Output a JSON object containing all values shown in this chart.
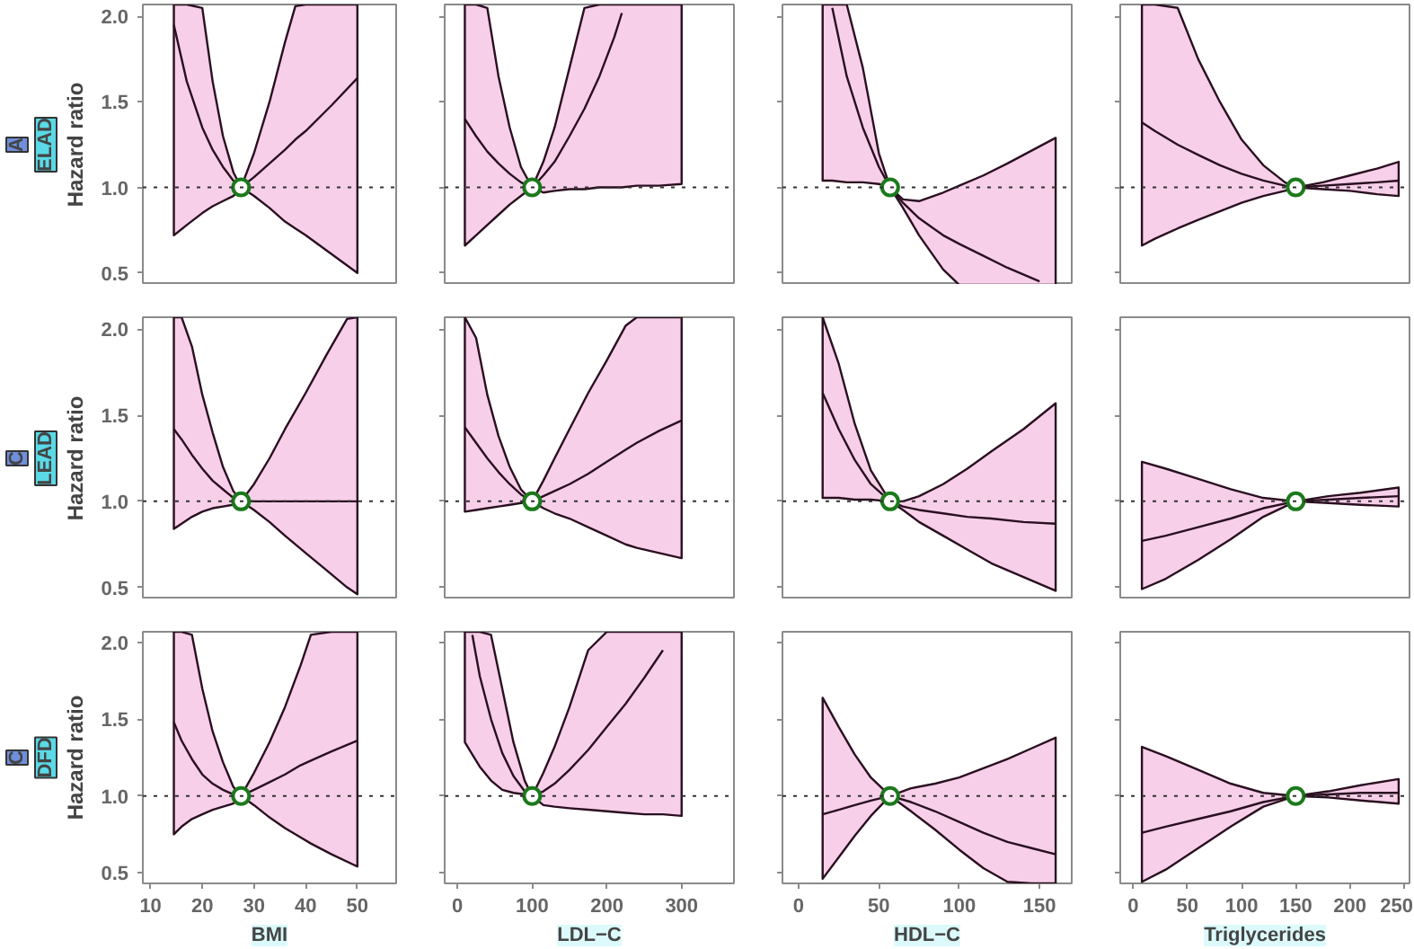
{
  "chart_data": [
    {
      "type": "line",
      "annotations": [
        "A",
        "ELAD"
      ],
      "ylabel": "Hazard ratio",
      "tick_labels": "y",
      "grid": false,
      "xlim": [
        8.5,
        57.5
      ],
      "xticks": [
        10,
        20,
        30,
        40,
        50
      ],
      "ylim": [
        0.43,
        2.07
      ],
      "yticks": [
        {
          "value": 0.5,
          "label": "0.5"
        },
        {
          "value": 1,
          "label": "1.0"
        },
        {
          "value": 1.5,
          "label": "1.5"
        },
        {
          "value": 2,
          "label": "2.0"
        }
      ],
      "ref_lines": [
        {
          "axis": "y",
          "value": 1,
          "line_style": "dotted",
          "color": "#333333"
        }
      ],
      "x": [
        14.5,
        17,
        20,
        22,
        24,
        26,
        27.5,
        30,
        33,
        36,
        38,
        40,
        45,
        50
      ],
      "series": [
        {
          "color": "#2a0f20",
          "values": [
            1.95,
            1.62,
            1.35,
            1.22,
            1.12,
            1.04,
            1.0,
            1.06,
            1.14,
            1.22,
            1.28,
            1.33,
            1.48,
            1.64
          ],
          "upper": [
            2.07,
            2.07,
            2.05,
            1.62,
            1.3,
            1.09,
            1.0,
            1.2,
            1.5,
            1.85,
            2.06,
            2.07,
            2.07,
            2.07
          ],
          "lower": [
            0.72,
            0.78,
            0.85,
            0.89,
            0.92,
            0.95,
            1.0,
            0.95,
            0.88,
            0.8,
            0.76,
            0.72,
            0.61,
            0.5
          ]
        },
        {
          "type": "scatter",
          "x": [
            27.5
          ],
          "values": [
            1
          ],
          "color": "#1b7a1b",
          "marker": "circle"
        }
      ]
    },
    {
      "type": "line",
      "tick_labels": false,
      "grid": false,
      "xlim": [
        -17,
        370
      ],
      "xticks": [
        0,
        100,
        200,
        300
      ],
      "ylim": [
        0.43,
        2.07
      ],
      "yticks": [
        {
          "value": 0.5,
          "label": null
        },
        {
          "value": 1,
          "label": null
        },
        {
          "value": 1.5,
          "label": null
        },
        {
          "value": 2,
          "label": null
        }
      ],
      "ref_lines": [
        {
          "axis": "y",
          "value": 1,
          "line_style": "dotted",
          "color": "#333333"
        }
      ],
      "x": [
        10,
        25,
        40,
        55,
        70,
        85,
        100,
        115,
        130,
        150,
        170,
        190,
        210,
        220,
        240,
        270,
        300
      ],
      "series": [
        {
          "color": "#2a0f20",
          "values": [
            1.4,
            1.3,
            1.21,
            1.14,
            1.08,
            1.03,
            1.0,
            1.07,
            1.15,
            1.3,
            1.46,
            1.65,
            1.88,
            2.02,
            null,
            null,
            null
          ],
          "upper": [
            2.07,
            2.07,
            2.05,
            1.65,
            1.35,
            1.12,
            1.0,
            1.15,
            1.35,
            1.7,
            2.05,
            2.07,
            2.07,
            2.07,
            2.07,
            2.07,
            2.07
          ],
          "lower": [
            0.66,
            0.72,
            0.78,
            0.84,
            0.9,
            0.95,
            1.0,
            0.97,
            0.98,
            0.99,
            0.99,
            1.0,
            1.0,
            1.0,
            1.01,
            1.01,
            1.02
          ]
        },
        {
          "type": "scatter",
          "x": [
            100
          ],
          "values": [
            1
          ],
          "color": "#1b7a1b",
          "marker": "circle"
        }
      ]
    },
    {
      "type": "line",
      "tick_labels": false,
      "grid": false,
      "xlim": [
        -10,
        170
      ],
      "xticks": [
        0,
        50,
        100,
        150
      ],
      "ylim": [
        0.43,
        2.07
      ],
      "yticks": [
        {
          "value": 0.5,
          "label": null
        },
        {
          "value": 1,
          "label": null
        },
        {
          "value": 1.5,
          "label": null
        },
        {
          "value": 2,
          "label": null
        }
      ],
      "ref_lines": [
        {
          "axis": "y",
          "value": 1,
          "line_style": "dotted",
          "color": "#333333"
        }
      ],
      "x": [
        15,
        21,
        30,
        40,
        50,
        57,
        65,
        75,
        90,
        100,
        115,
        130,
        150,
        160
      ],
      "series": [
        {
          "color": "#2a0f20",
          "values": [
            null,
            2.05,
            1.65,
            1.35,
            1.12,
            1.0,
            0.91,
            0.82,
            0.72,
            0.67,
            0.6,
            0.53,
            0.45,
            null
          ],
          "upper": [
            2.07,
            2.07,
            2.07,
            1.7,
            1.2,
            1.0,
            0.93,
            0.92,
            0.97,
            1.01,
            1.07,
            1.14,
            1.24,
            1.29
          ],
          "lower": [
            1.04,
            1.04,
            1.03,
            1.03,
            1.02,
            1.0,
            0.88,
            0.72,
            0.52,
            0.43,
            0.43,
            0.43,
            0.43,
            0.43
          ]
        },
        {
          "type": "scatter",
          "x": [
            57
          ],
          "values": [
            1
          ],
          "color": "#1b7a1b",
          "marker": "circle"
        }
      ]
    },
    {
      "type": "line",
      "tick_labels": false,
      "grid": false,
      "xlim": [
        -12,
        255
      ],
      "xticks": [
        0,
        50,
        100,
        150,
        200,
        250
      ],
      "ylim": [
        0.43,
        2.07
      ],
      "yticks": [
        {
          "value": 0.5,
          "label": null
        },
        {
          "value": 1,
          "label": null
        },
        {
          "value": 1.5,
          "label": null
        },
        {
          "value": 2,
          "label": null
        }
      ],
      "ref_lines": [
        {
          "axis": "y",
          "value": 1,
          "line_style": "dotted",
          "color": "#333333"
        }
      ],
      "x": [
        8,
        20,
        41,
        60,
        80,
        100,
        120,
        140,
        150,
        175,
        200,
        225,
        245
      ],
      "series": [
        {
          "color": "#2a0f20",
          "values": [
            1.38,
            1.33,
            1.25,
            1.19,
            1.13,
            1.08,
            1.04,
            1.01,
            1.0,
            1.01,
            1.02,
            1.03,
            1.04
          ],
          "upper": [
            2.07,
            2.07,
            2.05,
            1.75,
            1.5,
            1.28,
            1.13,
            1.03,
            1.0,
            1.03,
            1.07,
            1.11,
            1.15
          ],
          "lower": [
            0.66,
            0.7,
            0.76,
            0.81,
            0.86,
            0.91,
            0.95,
            0.98,
            1.0,
            0.99,
            0.98,
            0.96,
            0.95
          ]
        },
        {
          "type": "scatter",
          "x": [
            150
          ],
          "values": [
            1
          ],
          "color": "#1b7a1b",
          "marker": "circle"
        }
      ]
    },
    {
      "type": "line",
      "annotations": [
        "C",
        "LEAD"
      ],
      "ylabel": "Hazard ratio",
      "tick_labels": "y",
      "grid": false,
      "xlim": [
        8.5,
        57.5
      ],
      "xticks": [
        10,
        20,
        30,
        40,
        50
      ],
      "ylim": [
        0.43,
        2.07
      ],
      "yticks": [
        {
          "value": 0.5,
          "label": "0.5"
        },
        {
          "value": 1,
          "label": "1.0"
        },
        {
          "value": 1.5,
          "label": "1.5"
        },
        {
          "value": 2,
          "label": "2.0"
        }
      ],
      "ref_lines": [
        {
          "axis": "y",
          "value": 1,
          "line_style": "dotted",
          "color": "#333333"
        }
      ],
      "x": [
        14.5,
        16,
        18,
        20,
        22,
        24,
        26,
        27.5,
        30,
        33,
        36,
        40,
        44,
        48,
        50
      ],
      "series": [
        {
          "color": "#2a0f20",
          "values": [
            1.42,
            1.36,
            1.27,
            1.19,
            1.12,
            1.07,
            1.02,
            1.0,
            1.0,
            1.0,
            1.0,
            1.0,
            1.0,
            1.0,
            1.0
          ],
          "upper": [
            2.07,
            2.07,
            1.9,
            1.62,
            1.4,
            1.2,
            1.06,
            1.0,
            1.1,
            1.25,
            1.42,
            1.63,
            1.85,
            2.06,
            2.07
          ],
          "lower": [
            0.84,
            0.87,
            0.91,
            0.94,
            0.96,
            0.97,
            0.98,
            1.0,
            0.95,
            0.88,
            0.8,
            0.7,
            0.6,
            0.5,
            0.46
          ]
        },
        {
          "type": "scatter",
          "x": [
            27.5
          ],
          "values": [
            1
          ],
          "color": "#1b7a1b",
          "marker": "circle"
        }
      ]
    },
    {
      "type": "line",
      "tick_labels": false,
      "grid": false,
      "xlim": [
        -17,
        370
      ],
      "xticks": [
        0,
        100,
        200,
        300
      ],
      "ylim": [
        0.43,
        2.07
      ],
      "yticks": [
        {
          "value": 0.5,
          "label": null
        },
        {
          "value": 1,
          "label": null
        },
        {
          "value": 1.5,
          "label": null
        },
        {
          "value": 2,
          "label": null
        }
      ],
      "ref_lines": [
        {
          "axis": "y",
          "value": 1,
          "line_style": "dotted",
          "color": "#333333"
        }
      ],
      "x": [
        10,
        25,
        40,
        55,
        70,
        85,
        100,
        115,
        130,
        150,
        175,
        200,
        225,
        240,
        270,
        300
      ],
      "series": [
        {
          "color": "#2a0f20",
          "values": [
            1.43,
            1.34,
            1.25,
            1.17,
            1.1,
            1.04,
            1.0,
            1.03,
            1.06,
            1.1,
            1.16,
            1.23,
            1.3,
            1.34,
            1.41,
            1.47
          ],
          "upper": [
            2.07,
            1.95,
            1.62,
            1.38,
            1.2,
            1.07,
            1.0,
            1.12,
            1.25,
            1.42,
            1.63,
            1.82,
            2.02,
            2.07,
            2.07,
            2.07
          ],
          "lower": [
            0.94,
            0.95,
            0.96,
            0.97,
            0.98,
            0.99,
            1.0,
            0.96,
            0.93,
            0.9,
            0.85,
            0.8,
            0.75,
            0.73,
            0.7,
            0.67
          ]
        },
        {
          "type": "scatter",
          "x": [
            100
          ],
          "values": [
            1
          ],
          "color": "#1b7a1b",
          "marker": "circle"
        }
      ]
    },
    {
      "type": "line",
      "tick_labels": false,
      "grid": false,
      "xlim": [
        -10,
        170
      ],
      "xticks": [
        0,
        50,
        100,
        150
      ],
      "ylim": [
        0.43,
        2.07
      ],
      "yticks": [
        {
          "value": 0.5,
          "label": null
        },
        {
          "value": 1,
          "label": null
        },
        {
          "value": 1.5,
          "label": null
        },
        {
          "value": 2,
          "label": null
        }
      ],
      "ref_lines": [
        {
          "axis": "y",
          "value": 1,
          "line_style": "dotted",
          "color": "#333333"
        }
      ],
      "x": [
        15,
        25,
        35,
        45,
        57,
        65,
        75,
        90,
        105,
        120,
        140,
        160
      ],
      "series": [
        {
          "color": "#2a0f20",
          "values": [
            1.63,
            1.42,
            1.24,
            1.1,
            1.0,
            0.97,
            0.95,
            0.93,
            0.91,
            0.9,
            0.88,
            0.87
          ],
          "upper": [
            2.07,
            1.8,
            1.45,
            1.18,
            1.0,
            1.0,
            1.03,
            1.1,
            1.19,
            1.29,
            1.42,
            1.57
          ],
          "lower": [
            1.02,
            1.02,
            1.01,
            1.01,
            1.0,
            0.95,
            0.88,
            0.8,
            0.72,
            0.64,
            0.56,
            0.48
          ]
        },
        {
          "type": "scatter",
          "x": [
            57
          ],
          "values": [
            1
          ],
          "color": "#1b7a1b",
          "marker": "circle"
        }
      ]
    },
    {
      "type": "line",
      "tick_labels": false,
      "grid": false,
      "xlim": [
        -12,
        255
      ],
      "xticks": [
        0,
        50,
        100,
        150,
        200,
        250
      ],
      "ylim": [
        0.43,
        2.07
      ],
      "yticks": [
        {
          "value": 0.5,
          "label": null
        },
        {
          "value": 1,
          "label": null
        },
        {
          "value": 1.5,
          "label": null
        },
        {
          "value": 2,
          "label": null
        }
      ],
      "ref_lines": [
        {
          "axis": "y",
          "value": 1,
          "line_style": "dotted",
          "color": "#333333"
        }
      ],
      "x": [
        8,
        30,
        60,
        90,
        120,
        150,
        180,
        210,
        245
      ],
      "series": [
        {
          "color": "#2a0f20",
          "values": [
            0.77,
            0.8,
            0.85,
            0.9,
            0.96,
            1.0,
            1.01,
            1.02,
            1.03
          ],
          "upper": [
            1.23,
            1.19,
            1.13,
            1.07,
            1.02,
            1.0,
            1.03,
            1.05,
            1.08
          ],
          "lower": [
            0.49,
            0.55,
            0.66,
            0.78,
            0.91,
            1.0,
            0.99,
            0.98,
            0.97
          ]
        },
        {
          "type": "scatter",
          "x": [
            150
          ],
          "values": [
            1
          ],
          "color": "#1b7a1b",
          "marker": "circle"
        }
      ]
    },
    {
      "type": "line",
      "annotations": [
        "C",
        "DFD"
      ],
      "ylabel": "Hazard ratio",
      "xlabel": "BMI",
      "grid": false,
      "xlim": [
        8.5,
        57.5
      ],
      "xticks": [
        10,
        20,
        30,
        40,
        50
      ],
      "ylim": [
        0.43,
        2.07
      ],
      "yticks": [
        {
          "value": 0.5,
          "label": "0.5"
        },
        {
          "value": 1,
          "label": "1.0"
        },
        {
          "value": 1.5,
          "label": "1.5"
        },
        {
          "value": 2,
          "label": "2.0"
        }
      ],
      "ref_lines": [
        {
          "axis": "y",
          "value": 1,
          "line_style": "dotted",
          "color": "#333333"
        }
      ],
      "x": [
        14.5,
        16,
        18,
        20,
        22,
        24,
        26,
        27.5,
        30,
        33,
        36,
        39,
        41,
        45,
        50
      ],
      "series": [
        {
          "color": "#2a0f20",
          "values": [
            1.48,
            1.36,
            1.24,
            1.14,
            1.08,
            1.04,
            1.01,
            1.0,
            1.04,
            1.09,
            1.14,
            1.2,
            1.23,
            1.29,
            1.36
          ],
          "upper": [
            2.07,
            2.07,
            2.05,
            1.7,
            1.42,
            1.22,
            1.06,
            1.0,
            1.15,
            1.35,
            1.58,
            1.85,
            2.05,
            2.07,
            2.07
          ],
          "lower": [
            0.75,
            0.8,
            0.85,
            0.88,
            0.91,
            0.93,
            0.95,
            1.0,
            0.94,
            0.86,
            0.79,
            0.73,
            0.69,
            0.62,
            0.54
          ]
        },
        {
          "type": "scatter",
          "x": [
            27.5
          ],
          "values": [
            1
          ],
          "color": "#1b7a1b",
          "marker": "circle"
        }
      ]
    },
    {
      "type": "line",
      "xlabel": "LDL−C",
      "tick_labels": "x",
      "grid": false,
      "xlim": [
        -17,
        370
      ],
      "xticks": [
        0,
        100,
        200,
        300
      ],
      "ylim": [
        0.43,
        2.07
      ],
      "yticks": [
        {
          "value": 0.5,
          "label": null
        },
        {
          "value": 1,
          "label": null
        },
        {
          "value": 1.5,
          "label": null
        },
        {
          "value": 2,
          "label": null
        }
      ],
      "ref_lines": [
        {
          "axis": "y",
          "value": 1,
          "line_style": "dotted",
          "color": "#333333"
        }
      ],
      "x": [
        10,
        20,
        30,
        45,
        60,
        75,
        90,
        100,
        115,
        130,
        150,
        175,
        200,
        225,
        250,
        275,
        300
      ],
      "series": [
        {
          "color": "#2a0f20",
          "values": [
            null,
            2.05,
            1.78,
            1.5,
            1.28,
            1.13,
            1.03,
            1.0,
            1.03,
            1.08,
            1.17,
            1.3,
            1.45,
            1.6,
            1.77,
            1.95,
            null
          ],
          "upper": [
            2.07,
            2.07,
            2.07,
            2.05,
            1.7,
            1.35,
            1.1,
            1.0,
            1.15,
            1.32,
            1.58,
            1.95,
            2.07,
            2.07,
            2.07,
            2.07,
            2.07
          ],
          "lower": [
            1.35,
            1.27,
            1.19,
            1.1,
            1.04,
            1.02,
            1.01,
            1.0,
            0.94,
            0.93,
            0.92,
            0.91,
            0.9,
            0.89,
            0.88,
            0.88,
            0.87
          ]
        },
        {
          "type": "scatter",
          "x": [
            100
          ],
          "values": [
            1
          ],
          "color": "#1b7a1b",
          "marker": "circle"
        }
      ]
    },
    {
      "type": "line",
      "xlabel": "HDL−C",
      "tick_labels": "x",
      "grid": false,
      "xlim": [
        -10,
        170
      ],
      "xticks": [
        0,
        50,
        100,
        150
      ],
      "ylim": [
        0.43,
        2.07
      ],
      "yticks": [
        {
          "value": 0.5,
          "label": null
        },
        {
          "value": 1,
          "label": null
        },
        {
          "value": 1.5,
          "label": null
        },
        {
          "value": 2,
          "label": null
        }
      ],
      "ref_lines": [
        {
          "axis": "y",
          "value": 1,
          "line_style": "dotted",
          "color": "#333333"
        }
      ],
      "x": [
        15,
        25,
        35,
        45,
        57,
        70,
        85,
        100,
        115,
        130,
        145,
        160
      ],
      "series": [
        {
          "color": "#2a0f20",
          "values": [
            0.88,
            0.91,
            0.94,
            0.97,
            1.0,
            0.96,
            0.9,
            0.83,
            0.76,
            0.7,
            0.66,
            0.62
          ],
          "upper": [
            1.64,
            1.45,
            1.27,
            1.12,
            1.0,
            1.05,
            1.08,
            1.12,
            1.18,
            1.24,
            1.31,
            1.38
          ],
          "lower": [
            0.46,
            0.6,
            0.74,
            0.87,
            1.0,
            0.9,
            0.78,
            0.65,
            0.53,
            0.44,
            0.43,
            0.43
          ]
        },
        {
          "type": "scatter",
          "x": [
            57
          ],
          "values": [
            1
          ],
          "color": "#1b7a1b",
          "marker": "circle"
        }
      ]
    },
    {
      "type": "line",
      "xlabel": "Triglycerides",
      "tick_labels": "x",
      "grid": false,
      "xlim": [
        -12,
        255
      ],
      "xticks": [
        0,
        50,
        100,
        150,
        200,
        250
      ],
      "ylim": [
        0.43,
        2.07
      ],
      "yticks": [
        {
          "value": 0.5,
          "label": null
        },
        {
          "value": 1,
          "label": null
        },
        {
          "value": 1.5,
          "label": null
        },
        {
          "value": 2,
          "label": null
        }
      ],
      "ref_lines": [
        {
          "axis": "y",
          "value": 1,
          "line_style": "dotted",
          "color": "#333333"
        }
      ],
      "x": [
        8,
        30,
        60,
        90,
        120,
        150,
        180,
        210,
        245
      ],
      "series": [
        {
          "color": "#2a0f20",
          "values": [
            0.76,
            0.8,
            0.85,
            0.9,
            0.96,
            1.0,
            1.01,
            1.02,
            1.02
          ],
          "upper": [
            1.32,
            1.26,
            1.17,
            1.08,
            1.02,
            1.0,
            1.03,
            1.07,
            1.11
          ],
          "lower": [
            0.44,
            0.52,
            0.66,
            0.8,
            0.93,
            1.0,
            0.99,
            0.97,
            0.95
          ]
        },
        {
          "type": "scatter",
          "x": [
            150
          ],
          "values": [
            1
          ],
          "color": "#1b7a1b",
          "marker": "circle"
        }
      ]
    }
  ]
}
